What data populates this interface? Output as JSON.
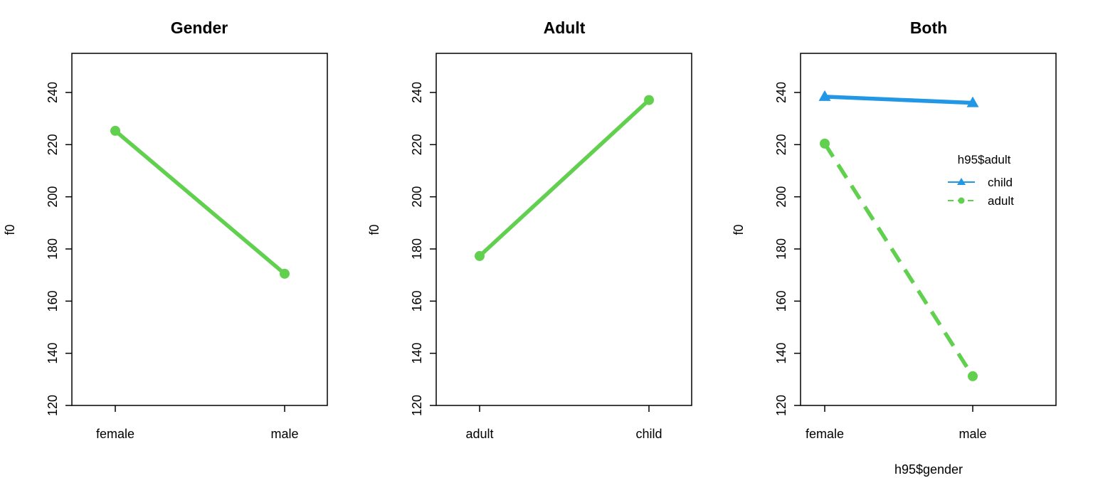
{
  "chart_data": [
    {
      "type": "line",
      "title": "Gender",
      "xlabel": "",
      "ylabel": "f0",
      "categories": [
        "female",
        "male"
      ],
      "ylim": [
        120,
        255
      ],
      "yticks": [
        120,
        140,
        160,
        180,
        200,
        220,
        240
      ],
      "series": [
        {
          "name": "",
          "values": [
            225.3,
            170.5
          ],
          "color": "#61D04F",
          "linestyle": "solid",
          "marker": "circle"
        }
      ]
    },
    {
      "type": "line",
      "title": "Adult",
      "xlabel": "",
      "ylabel": "f0",
      "categories": [
        "adult",
        "child"
      ],
      "ylim": [
        120,
        255
      ],
      "yticks": [
        120,
        140,
        160,
        180,
        200,
        220,
        240
      ],
      "series": [
        {
          "name": "",
          "values": [
            177.3,
            237.1
          ],
          "color": "#61D04F",
          "linestyle": "solid",
          "marker": "circle"
        }
      ]
    },
    {
      "type": "line",
      "title": "Both",
      "xlabel": "h95$gender",
      "ylabel": "f0",
      "categories": [
        "female",
        "male"
      ],
      "ylim": [
        120,
        255
      ],
      "yticks": [
        120,
        140,
        160,
        180,
        200,
        220,
        240
      ],
      "legend": {
        "title": "h95$adult",
        "position": "right"
      },
      "series": [
        {
          "name": "child",
          "values": [
            238.4,
            236.0
          ],
          "color": "#2297E6",
          "linestyle": "solid",
          "marker": "triangle"
        },
        {
          "name": "adult",
          "values": [
            220.4,
            131.2
          ],
          "color": "#61D04F",
          "linestyle": "dashed",
          "marker": "circle"
        }
      ]
    }
  ]
}
